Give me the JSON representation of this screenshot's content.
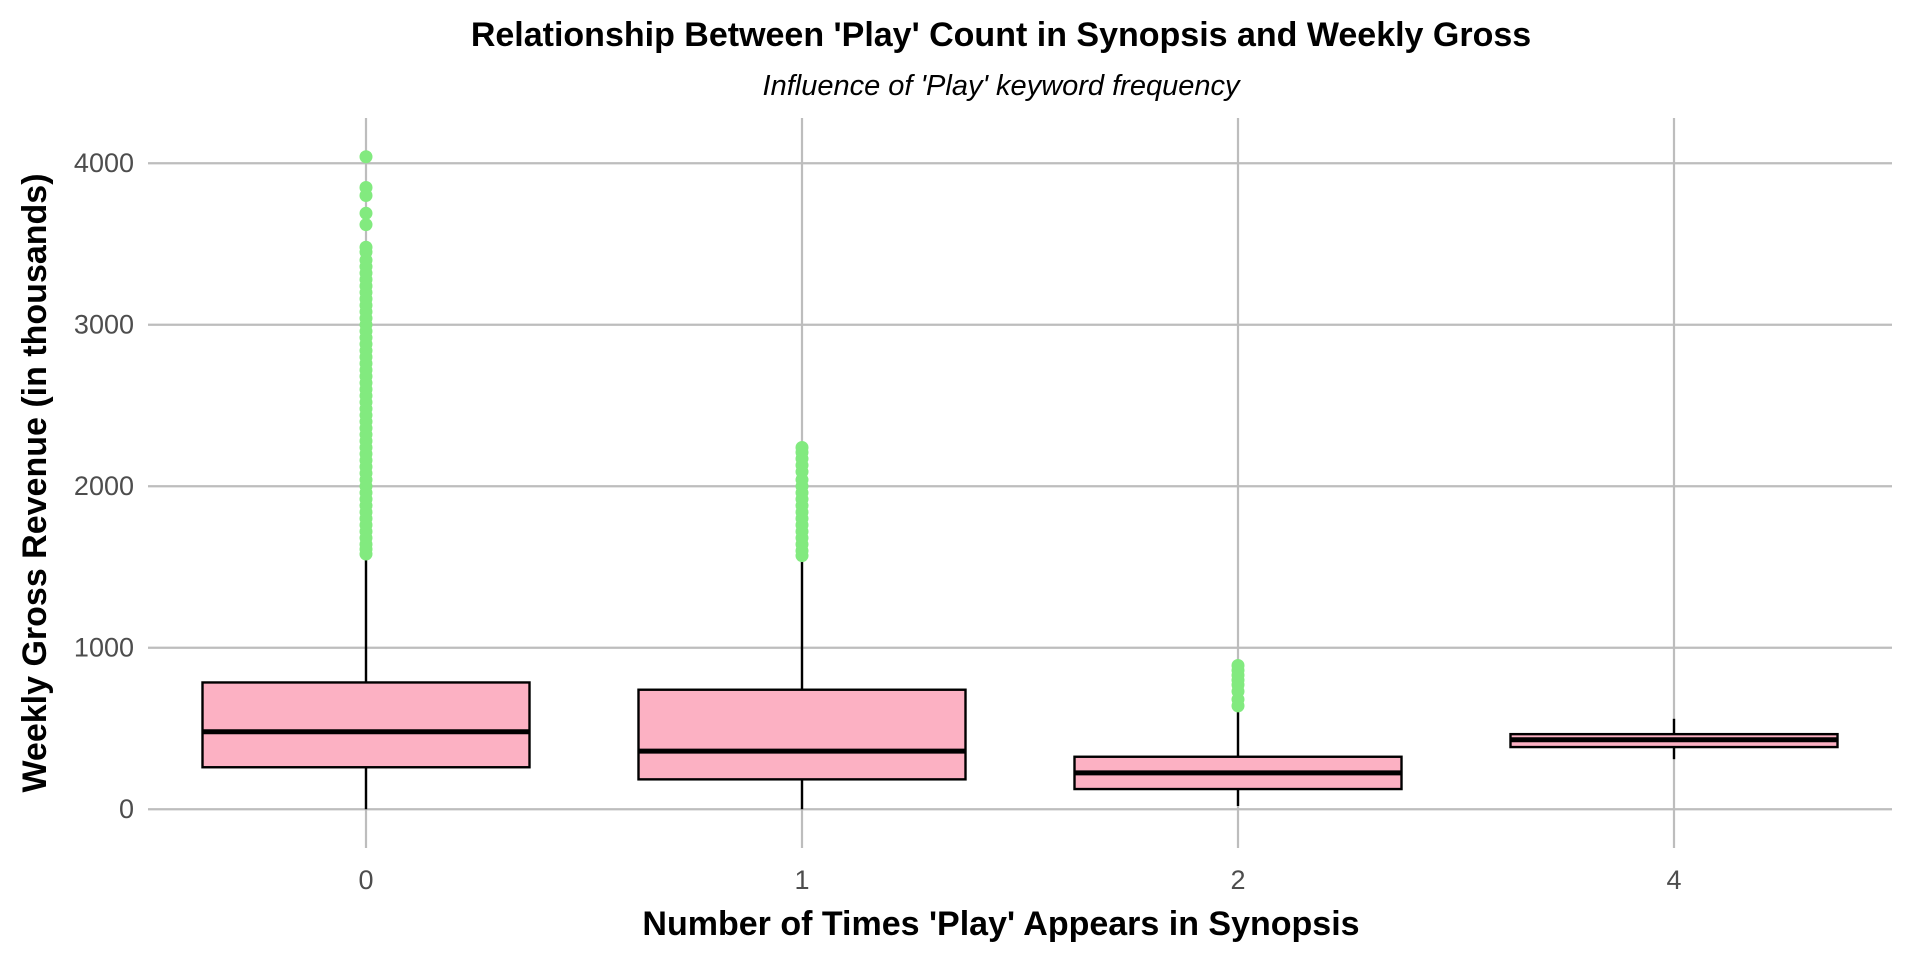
{
  "chart_data": {
    "type": "boxplot",
    "title": "Relationship Between 'Play' Count in Synopsis and Weekly Gross",
    "subtitle": "Influence of 'Play' keyword frequency",
    "xlabel": "Number of Times 'Play' Appears in Synopsis",
    "ylabel": "Weekly Gross Revenue (in thousands)",
    "ylim": [
      -240,
      4280
    ],
    "y_ticks": [
      0,
      1000,
      2000,
      3000,
      4000
    ],
    "categories": [
      "0",
      "1",
      "2",
      "4"
    ],
    "grid": true,
    "legend": "none",
    "colors": {
      "box_fill": "#fcb1c3",
      "box_stroke": "#000000",
      "outlier": "#82ea7f",
      "grid": "#bdbdbd"
    },
    "boxes": [
      {
        "category": "0",
        "whisker_low": 0,
        "q1": 260,
        "median": 480,
        "q3": 785,
        "whisker_high": 1570,
        "outliers": [
          1580,
          1610,
          1640,
          1680,
          1720,
          1760,
          1800,
          1840,
          1880,
          1920,
          1960,
          2000,
          2040,
          2080,
          2120,
          2160,
          2200,
          2240,
          2280,
          2320,
          2360,
          2400,
          2440,
          2480,
          2520,
          2560,
          2600,
          2640,
          2680,
          2720,
          2760,
          2800,
          2840,
          2880,
          2920,
          2960,
          3000,
          3040,
          3080,
          3120,
          3160,
          3200,
          3240,
          3280,
          3320,
          3360,
          3400,
          3450,
          3480,
          3620,
          3690,
          3800,
          3850,
          4040
        ]
      },
      {
        "category": "1",
        "whisker_low": 0,
        "q1": 185,
        "median": 360,
        "q3": 740,
        "whisker_high": 1560,
        "outliers": [
          1570,
          1600,
          1640,
          1680,
          1720,
          1760,
          1800,
          1840,
          1880,
          1920,
          1960,
          2000,
          2040,
          2090,
          2130,
          2170,
          2210,
          2240
        ]
      },
      {
        "category": "2",
        "whisker_low": 20,
        "q1": 125,
        "median": 225,
        "q3": 325,
        "whisker_high": 610,
        "outliers": [
          640,
          680,
          730,
          770,
          800,
          830,
          860,
          890
        ]
      },
      {
        "category": "4",
        "whisker_low": 310,
        "q1": 385,
        "median": 430,
        "q3": 465,
        "whisker_high": 560,
        "outliers": []
      }
    ]
  }
}
